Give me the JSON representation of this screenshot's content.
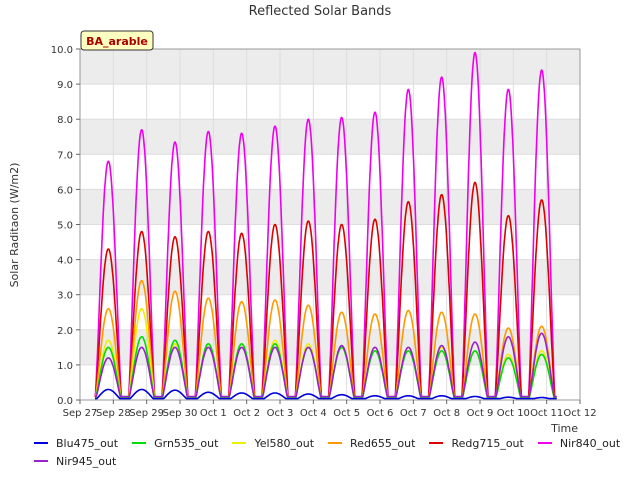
{
  "chart_data": {
    "type": "line",
    "title": "Reflected Solar Bands",
    "xlabel": "Time",
    "ylabel": "Solar Raditaon (W/m2)",
    "badge": "BA_arable",
    "ylim": [
      0,
      10
    ],
    "yticks": [
      "0.0",
      "1.0",
      "2.0",
      "3.0",
      "4.0",
      "5.0",
      "6.0",
      "7.0",
      "8.0",
      "9.0",
      "10.0"
    ],
    "xlim": [
      0,
      15
    ],
    "xticks": [
      "Sep 27",
      "Sep 28",
      "Sep 29",
      "Sep 30",
      "Oct 1",
      "Oct 2",
      "Oct 3",
      "Oct 4",
      "Oct 5",
      "Oct 6",
      "Oct 7",
      "Oct 8",
      "Oct 9",
      "Oct 10",
      "Oct 11",
      "Oct 12"
    ],
    "day_centers": [
      0.85,
      1.85,
      2.85,
      3.85,
      4.85,
      5.85,
      6.85,
      7.85,
      8.85,
      9.85,
      10.85,
      11.85,
      12.85,
      13.85
    ],
    "series": [
      {
        "name": "Blu475_out",
        "color": "#0000dd",
        "peaks": [
          0.3,
          0.3,
          0.28,
          0.22,
          0.2,
          0.2,
          0.17,
          0.15,
          0.12,
          0.12,
          0.12,
          0.1,
          0.08,
          0.07
        ]
      },
      {
        "name": "Grn535_out",
        "color": "#00dd00",
        "peaks": [
          1.5,
          1.8,
          1.7,
          1.6,
          1.6,
          1.6,
          1.5,
          1.5,
          1.4,
          1.4,
          1.4,
          1.4,
          1.2,
          1.3
        ]
      },
      {
        "name": "Yel580_out",
        "color": "#eeee00",
        "peaks": [
          1.7,
          2.6,
          1.6,
          1.6,
          1.6,
          1.7,
          1.6,
          1.5,
          1.5,
          1.5,
          1.5,
          1.4,
          1.3,
          1.4
        ]
      },
      {
        "name": "Red655_out",
        "color": "#ff9900",
        "peaks": [
          2.6,
          3.4,
          3.1,
          2.9,
          2.8,
          2.85,
          2.7,
          2.5,
          2.45,
          2.55,
          2.5,
          2.45,
          2.05,
          2.1
        ]
      },
      {
        "name": "Redg715_out",
        "color": "#dd0000",
        "peaks": [
          4.3,
          4.8,
          4.65,
          4.8,
          4.75,
          5.0,
          5.1,
          5.0,
          5.15,
          5.65,
          5.85,
          6.2,
          5.25,
          5.7
        ]
      },
      {
        "name": "Nir840_out",
        "color": "#ee00ee",
        "peaks": [
          6.8,
          7.7,
          7.35,
          7.65,
          7.6,
          7.8,
          8.0,
          8.05,
          8.2,
          8.85,
          9.2,
          9.9,
          8.85,
          9.4
        ]
      },
      {
        "name": "Nir945_out",
        "color": "#9922cc",
        "peaks": [
          1.2,
          1.5,
          1.5,
          1.5,
          1.5,
          1.5,
          1.5,
          1.55,
          1.5,
          1.5,
          1.55,
          1.65,
          1.8,
          1.9
        ]
      }
    ]
  }
}
